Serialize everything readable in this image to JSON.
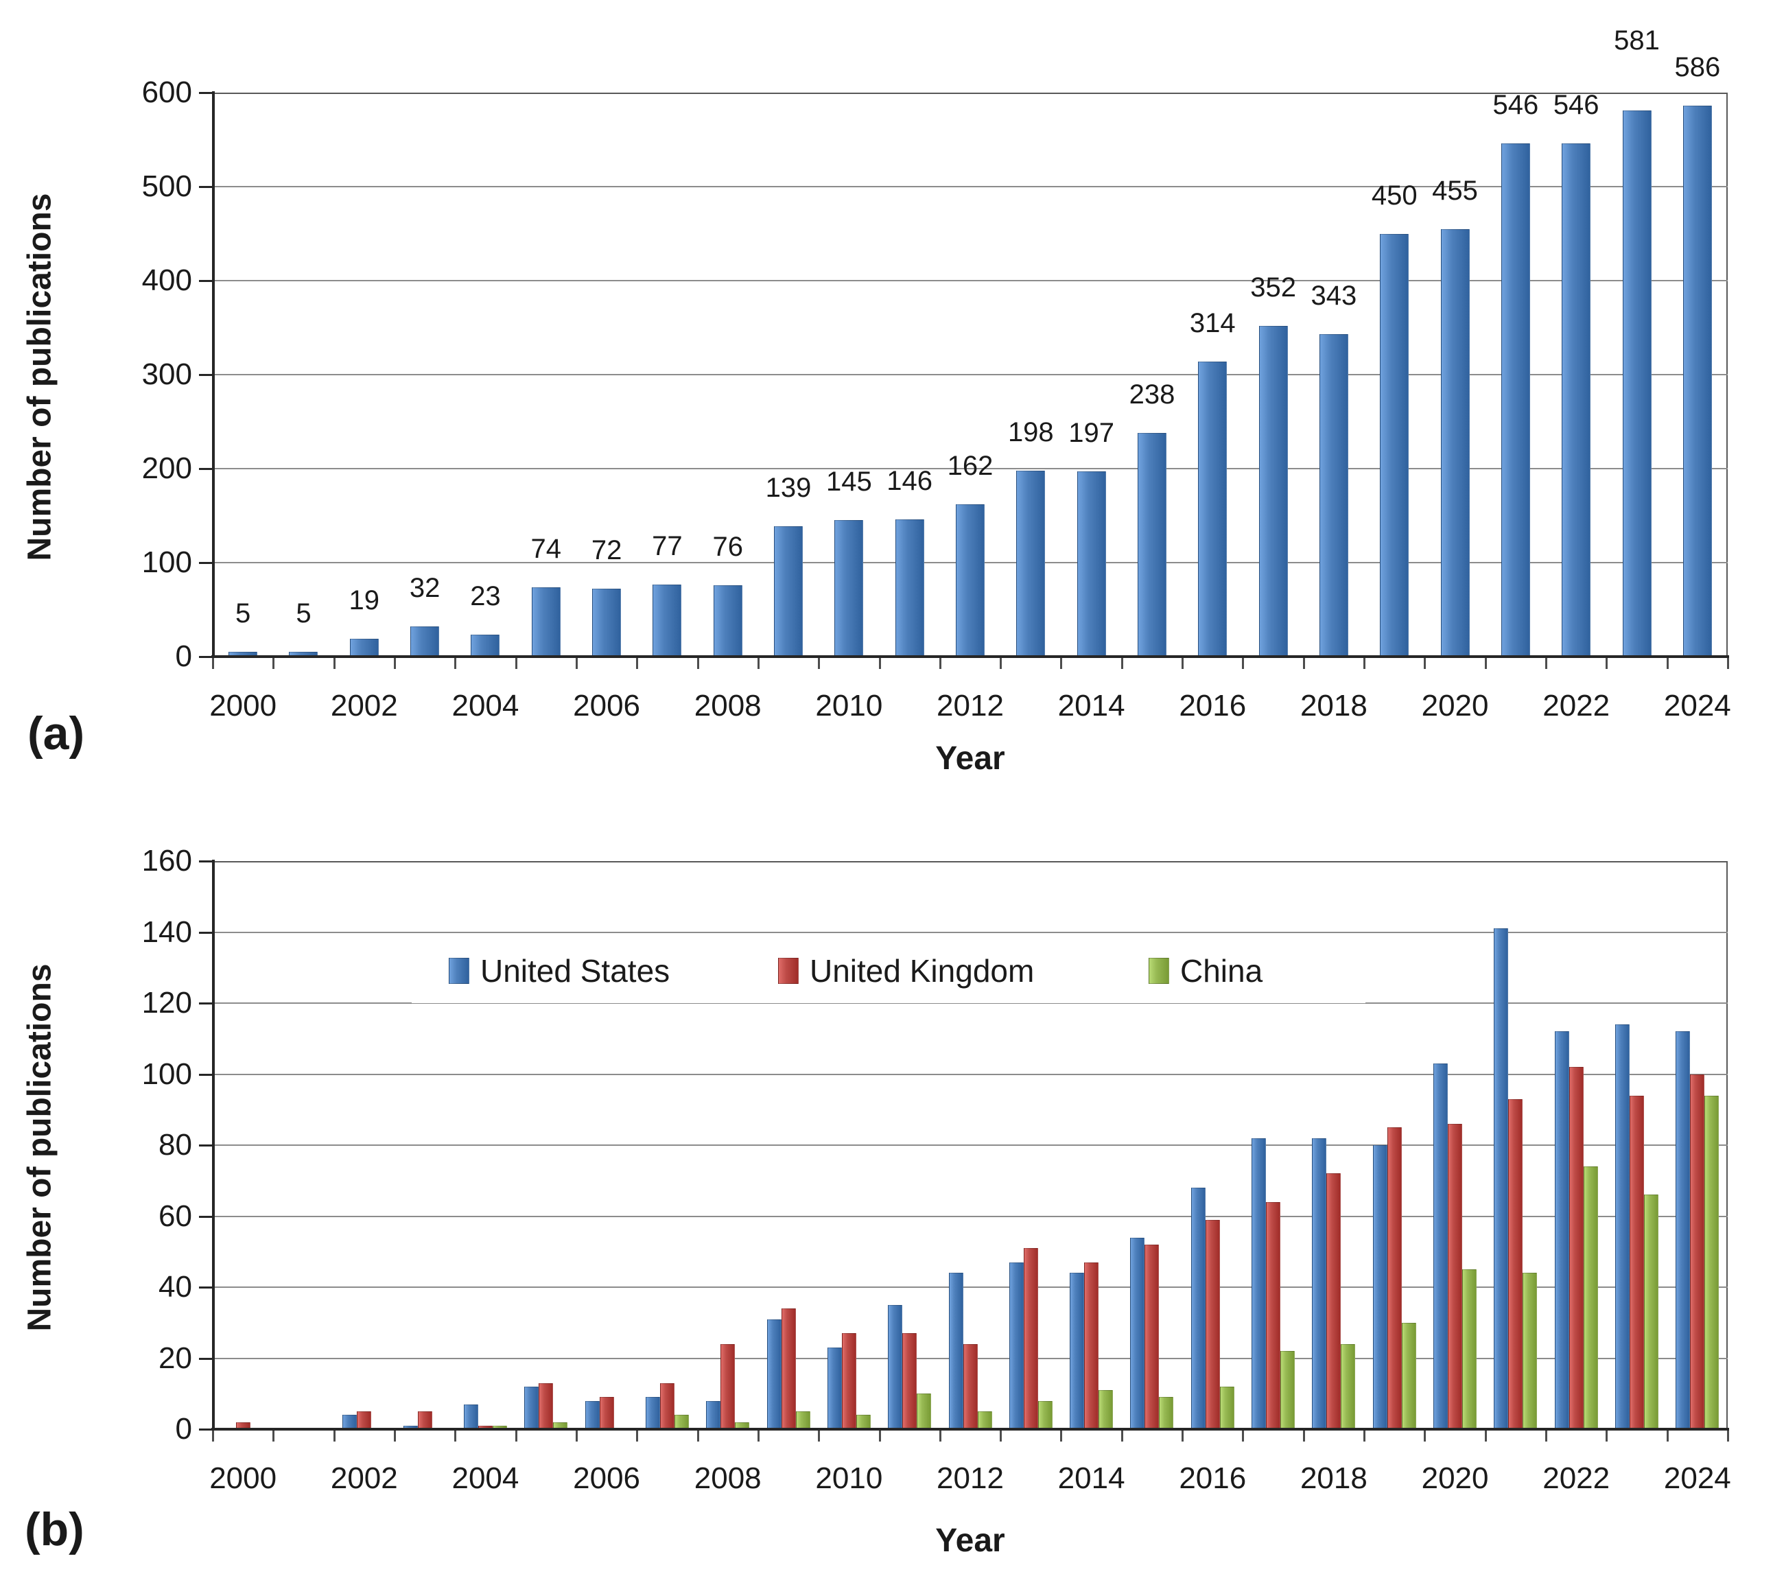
{
  "figure": {
    "panels": [
      {
        "tag": "(a)"
      },
      {
        "tag": "(b)"
      }
    ]
  },
  "colors": {
    "us_blue": "#4E80BC",
    "uk_red": "#BE4B47",
    "china_green": "#97B953",
    "gridline": "#8c8c8c",
    "axis": "#262626",
    "text": "#1a1a1a"
  },
  "chart_data": [
    {
      "type": "bar",
      "title": "",
      "xlabel": "Year",
      "ylabel": "Number of publications",
      "ylim": [
        0,
        600
      ],
      "ytick_step": 100,
      "grid": true,
      "legend_position": "none",
      "categories": [
        2000,
        2001,
        2002,
        2003,
        2004,
        2005,
        2006,
        2007,
        2008,
        2009,
        2010,
        2011,
        2012,
        2013,
        2014,
        2015,
        2016,
        2017,
        2018,
        2019,
        2020,
        2021,
        2022,
        2023,
        2024
      ],
      "xtick_labels": [
        "2000",
        "2002",
        "2004",
        "2006",
        "2008",
        "2010",
        "2012",
        "2014",
        "2016",
        "2018",
        "2020",
        "2022",
        "2024"
      ],
      "values": [
        5,
        5,
        19,
        32,
        23,
        74,
        72,
        77,
        76,
        139,
        145,
        146,
        162,
        198,
        197,
        238,
        314,
        352,
        343,
        450,
        455,
        546,
        546,
        581,
        586
      ],
      "data_labels": [
        5,
        5,
        19,
        32,
        23,
        74,
        72,
        77,
        76,
        139,
        145,
        146,
        162,
        198,
        197,
        238,
        314,
        352,
        343,
        450,
        455,
        546,
        546,
        581,
        586
      ],
      "raised_label_index": 23,
      "bar_color": "#4E80BC"
    },
    {
      "type": "bar",
      "title": "",
      "xlabel": "Year",
      "ylabel": "Number of publications",
      "ylim": [
        0,
        160
      ],
      "ytick_step": 20,
      "grid": true,
      "legend_position": "inside-top",
      "categories": [
        2000,
        2001,
        2002,
        2003,
        2004,
        2005,
        2006,
        2007,
        2008,
        2009,
        2010,
        2011,
        2012,
        2013,
        2014,
        2015,
        2016,
        2017,
        2018,
        2019,
        2020,
        2021,
        2022,
        2023,
        2024
      ],
      "xtick_labels": [
        "2000",
        "2002",
        "2004",
        "2006",
        "2008",
        "2010",
        "2012",
        "2014",
        "2016",
        "2018",
        "2020",
        "2022",
        "2024"
      ],
      "series": [
        {
          "name": "United States",
          "color": "#4E80BC",
          "values": [
            0,
            0,
            4,
            1,
            7,
            12,
            8,
            9,
            8,
            31,
            23,
            35,
            44,
            47,
            44,
            54,
            68,
            82,
            82,
            80,
            103,
            141,
            112,
            114,
            112
          ]
        },
        {
          "name": "United Kingdom",
          "color": "#BE4B47",
          "values": [
            2,
            0,
            5,
            5,
            1,
            13,
            9,
            13,
            24,
            34,
            27,
            27,
            24,
            51,
            47,
            52,
            59,
            64,
            72,
            85,
            86,
            93,
            102,
            94,
            100
          ]
        },
        {
          "name": "China",
          "color": "#97B953",
          "values": [
            0,
            0,
            0,
            0,
            1,
            2,
            0,
            4,
            2,
            5,
            4,
            10,
            5,
            8,
            11,
            9,
            12,
            22,
            24,
            30,
            45,
            44,
            74,
            66,
            94
          ]
        }
      ]
    }
  ]
}
